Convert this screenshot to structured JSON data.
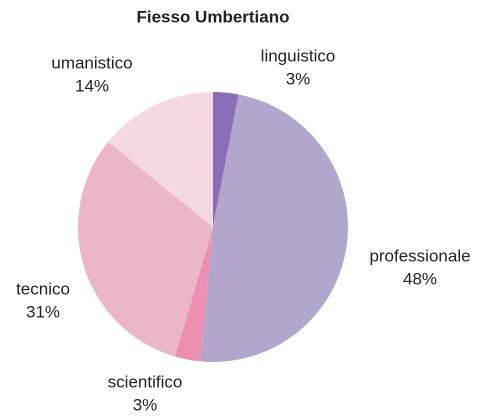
{
  "chart_data": {
    "type": "pie",
    "title": "Fiesso Umbertiano",
    "categories": [
      "linguistico",
      "professionale",
      "scientifico",
      "tecnico",
      "umanistico"
    ],
    "values": [
      3,
      48,
      3,
      31,
      14
    ],
    "value_labels": [
      "3%",
      "48%",
      "3%",
      "31%",
      "14%"
    ],
    "colors": [
      "#8a6fb8",
      "#b3a6cc",
      "#ec8fb0",
      "#ebb7c8",
      "#f5d9e2"
    ]
  }
}
